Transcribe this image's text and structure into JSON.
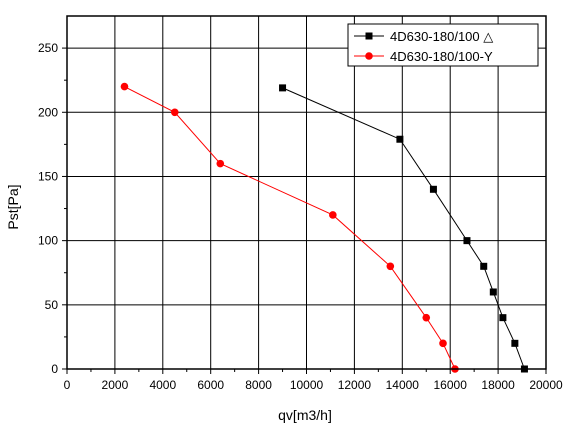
{
  "chart_data": {
    "type": "line",
    "title": "",
    "xlabel": "qv[m3/h]",
    "ylabel": "Pst[Pa]",
    "xlim": [
      0,
      20000
    ],
    "ylim": [
      0,
      275
    ],
    "x_ticks": [
      0,
      2000,
      4000,
      6000,
      8000,
      10000,
      12000,
      14000,
      16000,
      18000,
      20000
    ],
    "y_ticks": [
      0,
      50,
      100,
      150,
      200,
      250
    ],
    "grid": true,
    "legend_position": "top-right",
    "series": [
      {
        "name": "4D630-180/100 △",
        "color": "#000000",
        "marker": "square",
        "x": [
          9000,
          13900,
          15300,
          16700,
          17400,
          17800,
          18200,
          18700,
          19100
        ],
        "y": [
          219,
          179,
          140,
          100,
          80,
          60,
          40,
          20,
          0
        ]
      },
      {
        "name": "4D630-180/100-Y",
        "color": "#ff0000",
        "marker": "circle",
        "x": [
          2400,
          4500,
          6400,
          11100,
          13500,
          15000,
          15700,
          16200
        ],
        "y": [
          220,
          200,
          160,
          120,
          80,
          40,
          20,
          0
        ]
      }
    ]
  }
}
